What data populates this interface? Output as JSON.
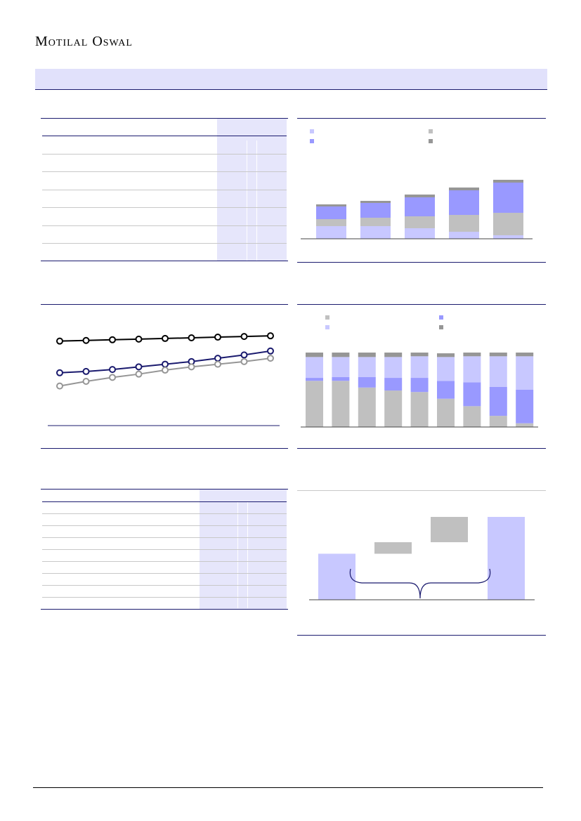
{
  "brand": {
    "name": "Motilal Oswal"
  },
  "colors": {
    "band": "#e1e1fb",
    "navy": "#1a1a6e",
    "lavender_light": "#c8c8ff",
    "lavender_mid": "#9999ff",
    "grey_light": "#c0c0c0",
    "grey_dark": "#969696",
    "table_shade": "#e6e6fb"
  },
  "chart_data": [
    {
      "type": "bar",
      "stacked": true,
      "legend_swatches": [
        "#c8c8ff",
        "#c0c0c0",
        "#9999ff",
        "#969696"
      ],
      "series": [
        {
          "color": "#c8c8ff",
          "values": [
            18,
            18,
            15,
            10,
            5
          ]
        },
        {
          "color": "#c0c0c0",
          "values": [
            10,
            12,
            17,
            24,
            32
          ]
        },
        {
          "color": "#9999ff",
          "values": [
            18,
            21,
            27,
            35,
            43
          ]
        },
        {
          "color": "#969696",
          "values": [
            3,
            3,
            4,
            4,
            4
          ]
        }
      ],
      "ylim": [
        0,
        90
      ]
    },
    {
      "type": "line",
      "series": [
        {
          "color": "#000000",
          "values": [
            128,
            129,
            130,
            131,
            132,
            133,
            134,
            135,
            136
          ]
        },
        {
          "color": "#1a1a6e",
          "values": [
            80,
            82,
            85,
            89,
            93,
            97,
            102,
            107,
            113
          ]
        },
        {
          "color": "#969696",
          "values": [
            60,
            67,
            73,
            78,
            84,
            89,
            93,
            97,
            102
          ]
        }
      ],
      "ylim": [
        0,
        150
      ]
    },
    {
      "type": "bar",
      "stacked": true,
      "percent": true,
      "legend_swatches": [
        "#c0c0c0",
        "#9999ff",
        "#c8c8ff",
        "#969696"
      ],
      "series": [
        {
          "color": "#c0c0c0",
          "values": [
            62,
            62,
            53,
            49,
            47,
            38,
            28,
            15,
            5
          ]
        },
        {
          "color": "#9999ff",
          "values": [
            4,
            5,
            14,
            17,
            19,
            24,
            32,
            39,
            45
          ]
        },
        {
          "color": "#c8c8ff",
          "values": [
            28,
            27,
            27,
            28,
            29,
            32,
            35,
            41,
            45
          ]
        },
        {
          "color": "#969696",
          "values": [
            6,
            6,
            6,
            6,
            5,
            5,
            5,
            5,
            5
          ]
        }
      ]
    },
    {
      "type": "bar",
      "waterfall": true,
      "steps": [
        {
          "kind": "total",
          "value": 100,
          "color": "#c8c8ff"
        },
        {
          "kind": "delta",
          "value": 25,
          "color": "#c0c0c0"
        },
        {
          "kind": "delta",
          "value": 55,
          "color": "#c0c0c0"
        },
        {
          "kind": "total",
          "value": 180,
          "color": "#c8c8ff"
        }
      ],
      "ylim": [
        0,
        180
      ]
    }
  ]
}
